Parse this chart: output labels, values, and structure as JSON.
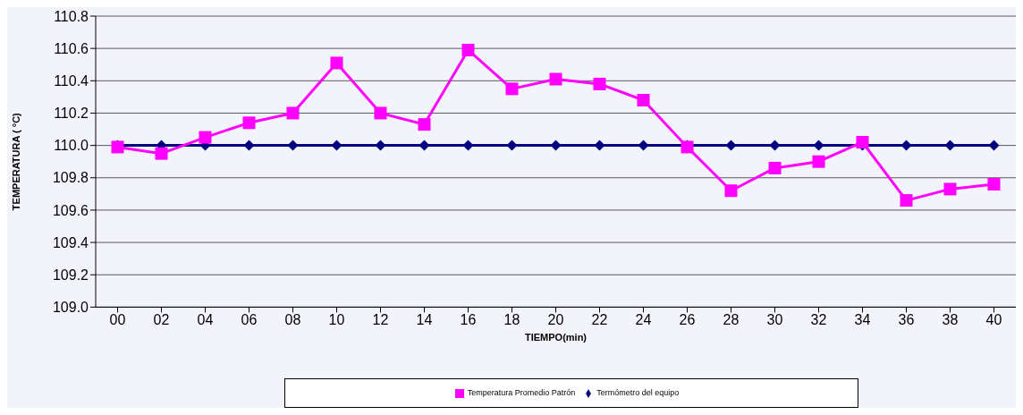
{
  "chart_data": {
    "type": "line",
    "xlabel": "TIEMPO(min)",
    "ylabel": "TEMPERATURA ( °C)",
    "categories": [
      "00",
      "02",
      "04",
      "06",
      "08",
      "10",
      "12",
      "14",
      "16",
      "18",
      "20",
      "22",
      "24",
      "26",
      "28",
      "30",
      "32",
      "34",
      "36",
      "38",
      "40"
    ],
    "series": [
      {
        "name": "Termómetro del equipo",
        "color": "#000080",
        "marker": "diamond",
        "values": [
          110,
          110,
          110,
          110,
          110,
          110,
          110,
          110,
          110,
          110,
          110,
          110,
          110,
          110,
          110,
          110,
          110,
          110,
          110,
          110,
          110
        ]
      },
      {
        "name": "Temperatura Promedio Patrón",
        "color": "#ff00ff",
        "marker": "square",
        "values": [
          109.99,
          109.95,
          110.05,
          110.14,
          110.2,
          110.51,
          110.2,
          110.13,
          110.59,
          110.35,
          110.41,
          110.38,
          110.28,
          109.99,
          109.72,
          109.86,
          109.9,
          110.02,
          109.66,
          109.73,
          109.76
        ]
      }
    ],
    "ylim": [
      109,
      110.8
    ],
    "yticks": [
      {
        "value": 109,
        "label": "109.0"
      },
      109.2,
      109.4,
      109.6,
      109.8,
      {
        "value": 110,
        "label": "110.0"
      },
      110.2,
      110.4,
      110.6,
      110.8
    ],
    "grid": "y",
    "legend": "bottom",
    "line_style": "solid"
  }
}
